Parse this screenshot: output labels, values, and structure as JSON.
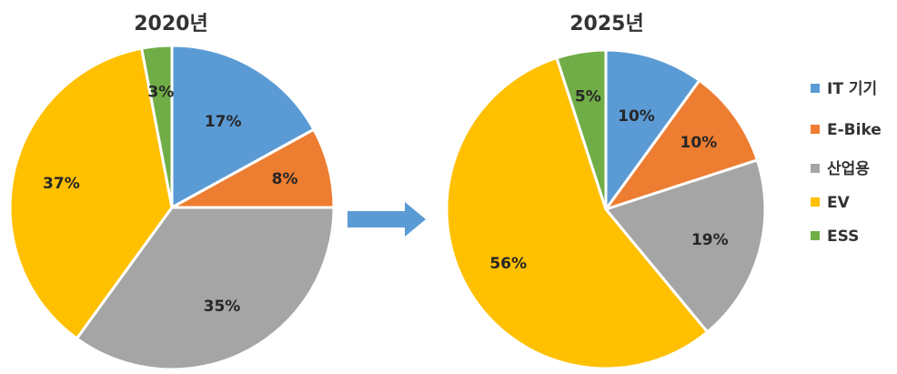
{
  "chart_data": [
    {
      "type": "pie",
      "title": "2020년",
      "categories": [
        "IT 기기",
        "E-Bike",
        "산업용",
        "EV",
        "ESS"
      ],
      "values": [
        17,
        8,
        35,
        37,
        3
      ],
      "labels": [
        "17%",
        "8%",
        "35%",
        "37%",
        "3%"
      ]
    },
    {
      "type": "pie",
      "title": "2025년",
      "categories": [
        "IT 기기",
        "E-Bike",
        "산업용",
        "EV",
        "ESS"
      ],
      "values": [
        10,
        10,
        19,
        56,
        5
      ],
      "labels": [
        "10%",
        "10%",
        "19%",
        "56%",
        "5%"
      ]
    }
  ],
  "legend": {
    "placement": "right",
    "items": [
      {
        "label": "IT 기기",
        "color": "#5B9BD5"
      },
      {
        "label": "E-Bike",
        "color": "#ED7D31"
      },
      {
        "label": "산업용",
        "color": "#A5A5A5"
      },
      {
        "label": "EV",
        "color": "#FFC000"
      },
      {
        "label": "ESS",
        "color": "#70AD47"
      }
    ]
  },
  "arrow": {
    "icon": "right-arrow-icon",
    "color": "#5B9BD5"
  }
}
